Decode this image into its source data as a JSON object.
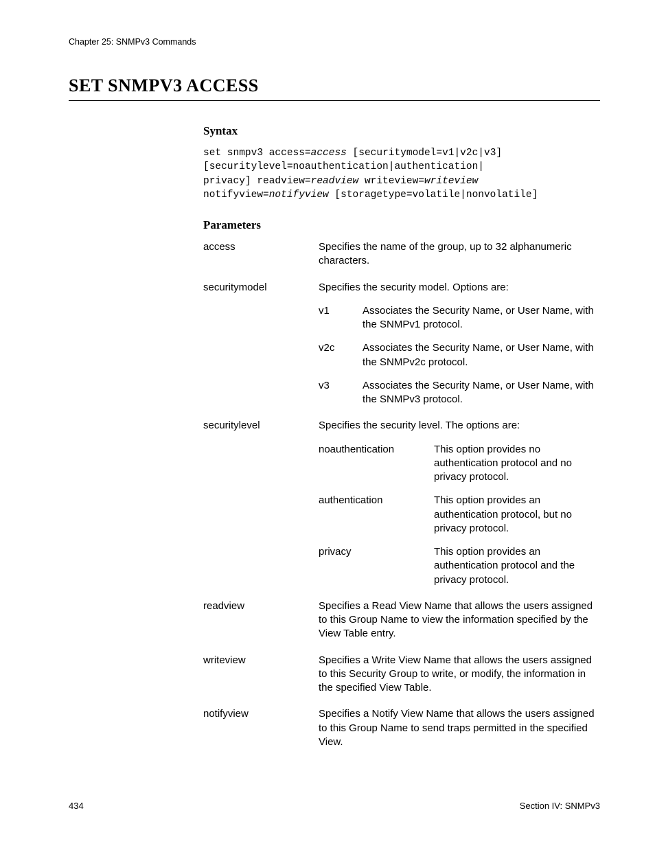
{
  "header": {
    "chapter": "Chapter 25: SNMPv3 Commands"
  },
  "title": "SET SNMPV3 ACCESS",
  "sections": {
    "syntax": {
      "heading": "Syntax",
      "line1_a": "set snmpv3 access=",
      "line1_b": "access",
      "line1_c": " [securitymodel=v1|v2c|v3]",
      "line2": "[securitylevel=noauthentication|authentication|",
      "line3_a": "privacy] readview=",
      "line3_b": "readview",
      "line3_c": " writeview=",
      "line3_d": "writeview",
      "line4_a": "notifyview=",
      "line4_b": "notifyview",
      "line4_c": " [storagetype=volatile|nonvolatile]"
    },
    "parameters": {
      "heading": "Parameters",
      "items": [
        {
          "name": "access",
          "desc": "Specifies the name of the group, up to 32 alphanumeric characters."
        },
        {
          "name": "securitymodel",
          "desc": "Specifies the security model. Options are:",
          "sub_width": "narrow",
          "subs": [
            {
              "name": "v1",
              "desc": "Associates the Security Name, or User Name, with the SNMPv1 protocol."
            },
            {
              "name": "v2c",
              "desc": "Associates the Security Name, or User Name, with the SNMPv2c protocol."
            },
            {
              "name": "v3",
              "desc": "Associates the Security Name, or User Name, with the SNMPv3 protocol."
            }
          ]
        },
        {
          "name": "securitylevel",
          "desc": "Specifies the security level. The options are:",
          "sub_width": "wide",
          "subs": [
            {
              "name": "noauthentication",
              "desc": "This option provides no authentication protocol and no privacy protocol."
            },
            {
              "name": "authentication",
              "desc": "This option provides an authentication protocol, but no privacy protocol."
            },
            {
              "name": "privacy",
              "desc": "This option provides an authentication protocol and the privacy protocol."
            }
          ]
        },
        {
          "name": "readview",
          "desc": "Specifies a Read View Name that allows the users assigned to this Group Name to view the information specified by the View Table entry."
        },
        {
          "name": "writeview",
          "desc": "Specifies a Write View Name that allows the users assigned to this Security Group to write, or modify, the information in the specified View Table."
        },
        {
          "name": "notifyview",
          "desc": "Specifies a Notify View Name that allows the users assigned to this Group Name to send traps permitted in the specified View."
        }
      ]
    }
  },
  "footer": {
    "page_number": "434",
    "section": "Section IV: SNMPv3"
  }
}
